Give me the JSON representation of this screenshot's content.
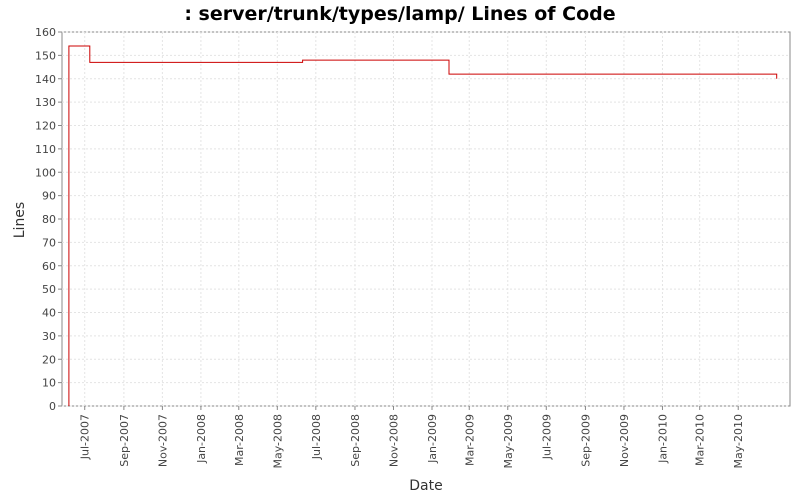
{
  "chart_data": {
    "type": "line",
    "step": true,
    "title": ": server/trunk/types/lamp/ Lines of Code",
    "xlabel": "Date",
    "ylabel": "Lines",
    "ylim": [
      0,
      160
    ],
    "yticks": [
      0,
      10,
      20,
      30,
      40,
      50,
      60,
      70,
      80,
      90,
      100,
      110,
      120,
      130,
      140,
      150,
      160
    ],
    "xticks": [
      "Jul-2007",
      "Sep-2007",
      "Nov-2007",
      "Jan-2008",
      "Mar-2008",
      "May-2008",
      "Jul-2008",
      "Sep-2008",
      "Nov-2008",
      "Jan-2009",
      "Mar-2009",
      "May-2009",
      "Jul-2009",
      "Sep-2009",
      "Nov-2009",
      "Jan-2010",
      "Mar-2010",
      "May-2010"
    ],
    "xlim": [
      "2007-05-26",
      "2010-07-22"
    ],
    "grid": true,
    "legend": "none",
    "series": [
      {
        "color": "#cc0000",
        "points": [
          {
            "x": "2007-06-06",
            "y": 0
          },
          {
            "x": "2007-06-06",
            "y": 154
          },
          {
            "x": "2007-07-09",
            "y": 154
          },
          {
            "x": "2007-07-09",
            "y": 147
          },
          {
            "x": "2008-06-10",
            "y": 147
          },
          {
            "x": "2008-06-10",
            "y": 148
          },
          {
            "x": "2009-01-28",
            "y": 148
          },
          {
            "x": "2009-01-28",
            "y": 142
          },
          {
            "x": "2010-07-01",
            "y": 142
          },
          {
            "x": "2010-07-01",
            "y": 140
          }
        ]
      }
    ]
  }
}
